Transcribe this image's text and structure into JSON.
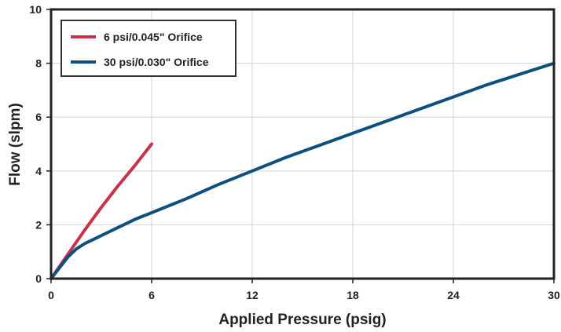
{
  "chart_data": {
    "type": "line",
    "title": "",
    "xlabel": "Applied Pressure (psig)",
    "ylabel": "Flow  (slpm)",
    "xlim": [
      0,
      30
    ],
    "ylim": [
      0,
      10
    ],
    "xticks": [
      0,
      6,
      12,
      18,
      24,
      30
    ],
    "yticks": [
      0,
      2,
      4,
      6,
      8,
      10
    ],
    "x_tick_labels": [
      "0",
      "6",
      "12",
      "18",
      "24",
      "30"
    ],
    "y_tick_labels": [
      "0",
      "2",
      "4",
      "6",
      "8",
      "10"
    ],
    "grid": true,
    "legend_position": "top-left",
    "series": [
      {
        "name": "6 psi/0.045\" Orifice",
        "color": "#c8334b",
        "points": [
          [
            0,
            0
          ],
          [
            1,
            0.9
          ],
          [
            2,
            1.8
          ],
          [
            3,
            2.65
          ],
          [
            4,
            3.45
          ],
          [
            5,
            4.2
          ],
          [
            6,
            5.0
          ]
        ]
      },
      {
        "name": "30 psi/0.030\" Orifice",
        "color": "#0d4f7d",
        "points": [
          [
            0,
            0
          ],
          [
            0.5,
            0.4
          ],
          [
            1,
            0.8
          ],
          [
            1.5,
            1.1
          ],
          [
            2,
            1.3
          ],
          [
            3,
            1.6
          ],
          [
            4,
            1.9
          ],
          [
            5,
            2.2
          ],
          [
            6,
            2.45
          ],
          [
            8,
            2.95
          ],
          [
            10,
            3.5
          ],
          [
            12,
            4.0
          ],
          [
            14,
            4.5
          ],
          [
            16,
            4.95
          ],
          [
            18,
            5.4
          ],
          [
            20,
            5.85
          ],
          [
            22,
            6.3
          ],
          [
            24,
            6.75
          ],
          [
            26,
            7.2
          ],
          [
            28,
            7.6
          ],
          [
            30,
            8.0
          ]
        ]
      }
    ]
  }
}
